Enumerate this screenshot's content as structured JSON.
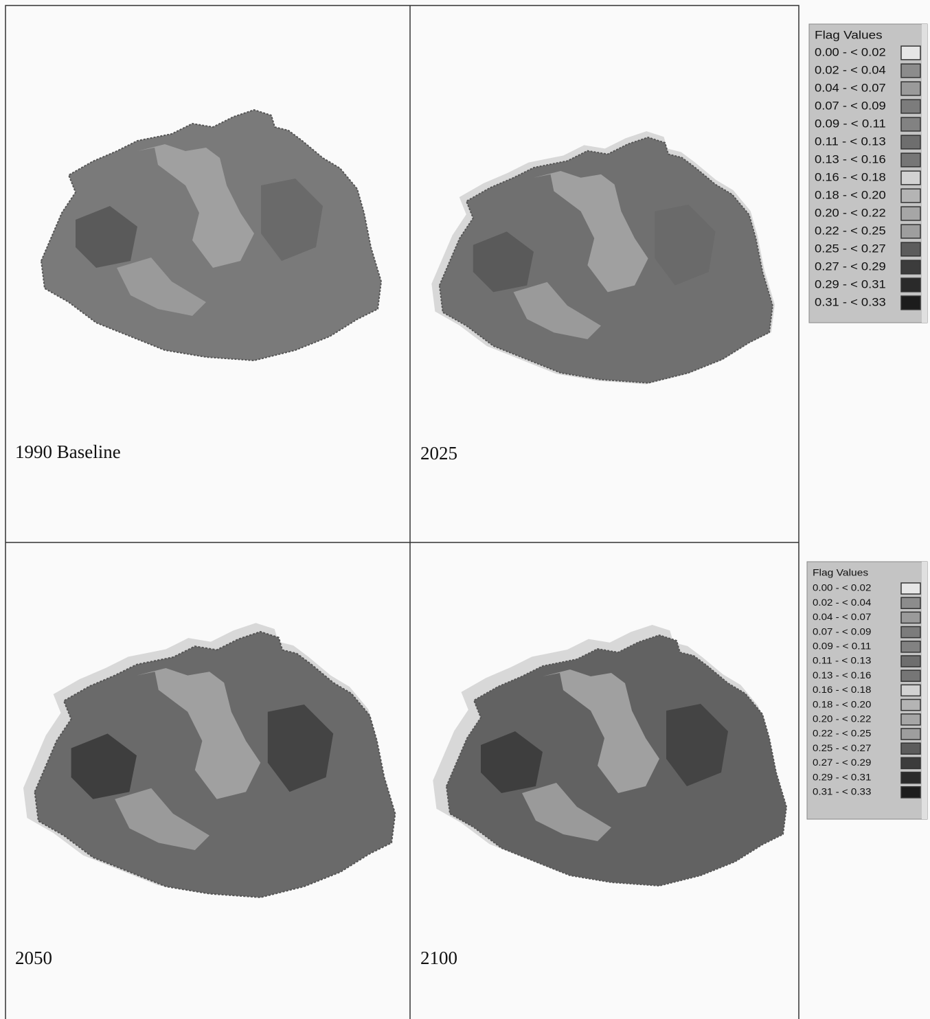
{
  "panels": [
    {
      "label": "1990 Baseline"
    },
    {
      "label": "2025"
    },
    {
      "label": "2050"
    },
    {
      "label": "2100"
    }
  ],
  "legends": [
    {
      "title": "Flag Values",
      "items": [
        {
          "label": "0.00 - < 0.02",
          "color": "#e6e6e6"
        },
        {
          "label": "0.02 - < 0.04",
          "color": "#8c8c8c"
        },
        {
          "label": "0.04 - < 0.07",
          "color": "#9a9a9a"
        },
        {
          "label": "0.07 - < 0.09",
          "color": "#7c7c7c"
        },
        {
          "label": "0.09 - < 0.11",
          "color": "#828282"
        },
        {
          "label": "0.11 - < 0.13",
          "color": "#6e6e6e"
        },
        {
          "label": "0.13 - < 0.16",
          "color": "#767676"
        },
        {
          "label": "0.16 - < 0.18",
          "color": "#d2d2d2"
        },
        {
          "label": "0.18 - < 0.20",
          "color": "#b4b4b4"
        },
        {
          "label": "0.20 - < 0.22",
          "color": "#a6a6a6"
        },
        {
          "label": "0.22 - < 0.25",
          "color": "#9e9e9e"
        },
        {
          "label": "0.25 - < 0.27",
          "color": "#5c5c5c"
        },
        {
          "label": "0.27 - < 0.29",
          "color": "#3c3c3c"
        },
        {
          "label": "0.29 - < 0.31",
          "color": "#2a2a2a"
        },
        {
          "label": "0.31 - < 0.33",
          "color": "#1c1c1c"
        }
      ]
    },
    {
      "title": "Flag Values",
      "items": [
        {
          "label": "0.00 - < 0.02",
          "color": "#e6e6e6"
        },
        {
          "label": "0.02 - < 0.04",
          "color": "#8c8c8c"
        },
        {
          "label": "0.04 - < 0.07",
          "color": "#9a9a9a"
        },
        {
          "label": "0.07 - < 0.09",
          "color": "#7c7c7c"
        },
        {
          "label": "0.09 - < 0.11",
          "color": "#828282"
        },
        {
          "label": "0.11 - < 0.13",
          "color": "#6e6e6e"
        },
        {
          "label": "0.13 - < 0.16",
          "color": "#767676"
        },
        {
          "label": "0.16 - < 0.18",
          "color": "#d2d2d2"
        },
        {
          "label": "0.18 - < 0.20",
          "color": "#b4b4b4"
        },
        {
          "label": "0.20 - < 0.22",
          "color": "#a6a6a6"
        },
        {
          "label": "0.22 - < 0.25",
          "color": "#9e9e9e"
        },
        {
          "label": "0.25 - < 0.27",
          "color": "#5c5c5c"
        },
        {
          "label": "0.27 - < 0.29",
          "color": "#3c3c3c"
        },
        {
          "label": "0.29 - < 0.31",
          "color": "#2a2a2a"
        },
        {
          "label": "0.31 - < 0.33",
          "color": "#1c1c1c"
        }
      ]
    }
  ]
}
